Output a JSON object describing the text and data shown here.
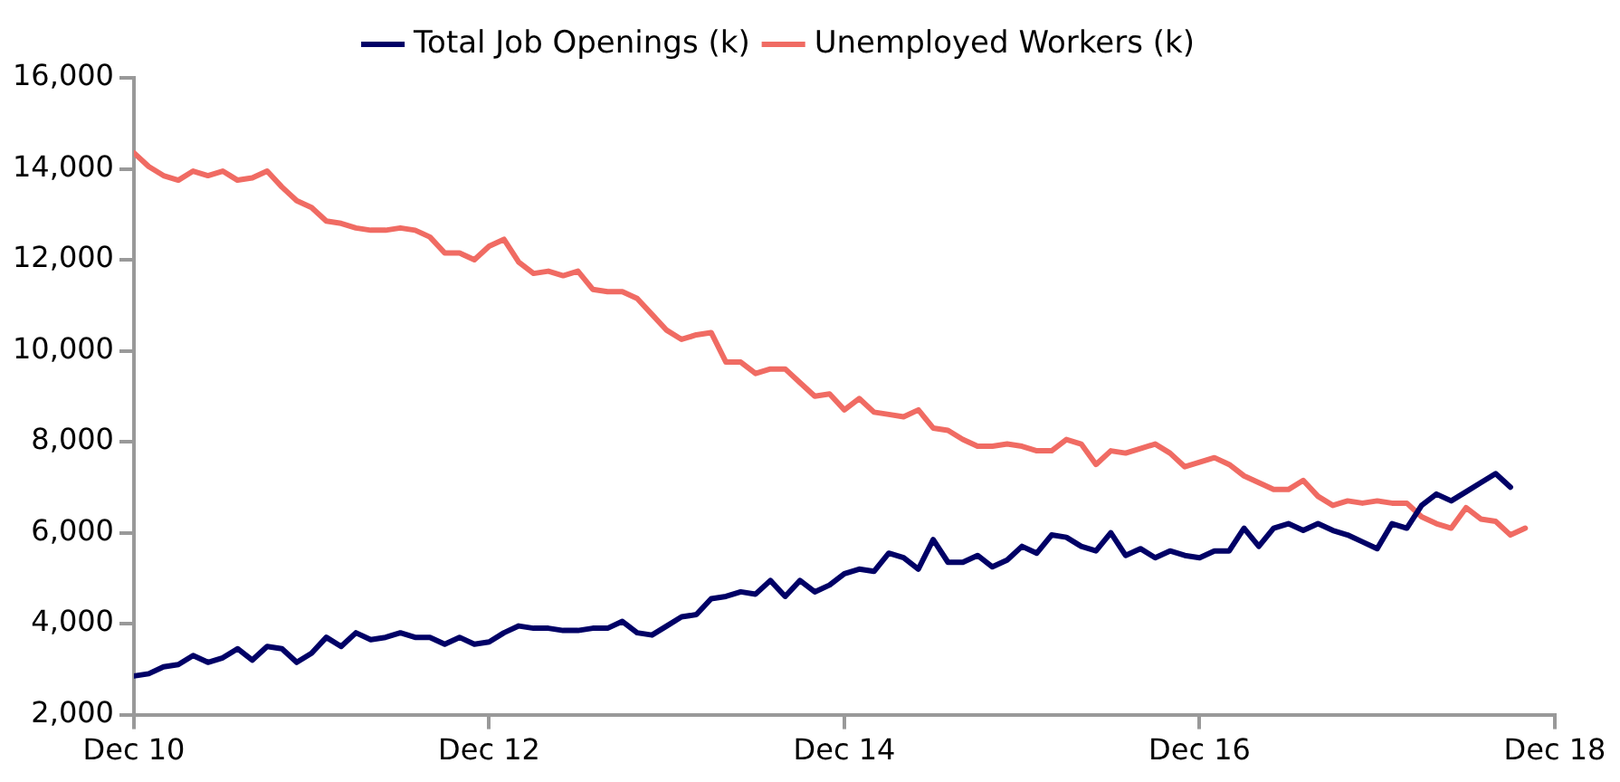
{
  "chart_data": {
    "type": "line",
    "legend": "top",
    "grid": false,
    "marker": "none",
    "line_style": "solid",
    "xlim": [
      "2010-12",
      "2018-12"
    ],
    "xticks": [
      {
        "value": "2010-12",
        "label": "Dec 10"
      },
      {
        "value": "2012-12",
        "label": "Dec 12"
      },
      {
        "value": "2014-12",
        "label": "Dec 14"
      },
      {
        "value": "2016-12",
        "label": "Dec 16"
      },
      {
        "value": "2018-12",
        "label": "Dec 18"
      }
    ],
    "ylim": [
      2000,
      16000
    ],
    "yticks": [
      {
        "value": 2000,
        "label": "2,000"
      },
      {
        "value": 4000,
        "label": "4,000"
      },
      {
        "value": 6000,
        "label": "6,000"
      },
      {
        "value": 8000,
        "label": "8,000"
      },
      {
        "value": 10000,
        "label": "10,000"
      },
      {
        "value": 12000,
        "label": "12,000"
      },
      {
        "value": 14000,
        "label": "14,000"
      },
      {
        "value": 16000,
        "label": "16,000"
      }
    ],
    "series": [
      {
        "name": "Total Job Openings (k)",
        "color": "#000066",
        "x": [
          "2010-12",
          "2011-01",
          "2011-02",
          "2011-03",
          "2011-04",
          "2011-05",
          "2011-06",
          "2011-07",
          "2011-08",
          "2011-09",
          "2011-10",
          "2011-11",
          "2011-12",
          "2012-01",
          "2012-02",
          "2012-03",
          "2012-04",
          "2012-05",
          "2012-06",
          "2012-07",
          "2012-08",
          "2012-09",
          "2012-10",
          "2012-11",
          "2012-12",
          "2013-01",
          "2013-02",
          "2013-03",
          "2013-04",
          "2013-05",
          "2013-06",
          "2013-07",
          "2013-08",
          "2013-09",
          "2013-10",
          "2013-11",
          "2013-12",
          "2014-01",
          "2014-02",
          "2014-03",
          "2014-04",
          "2014-05",
          "2014-06",
          "2014-07",
          "2014-08",
          "2014-09",
          "2014-10",
          "2014-11",
          "2014-12",
          "2015-01",
          "2015-02",
          "2015-03",
          "2015-04",
          "2015-05",
          "2015-06",
          "2015-07",
          "2015-08",
          "2015-09",
          "2015-10",
          "2015-11",
          "2015-12",
          "2016-01",
          "2016-02",
          "2016-03",
          "2016-04",
          "2016-05",
          "2016-06",
          "2016-07",
          "2016-08",
          "2016-09",
          "2016-10",
          "2016-11",
          "2016-12",
          "2017-01",
          "2017-02",
          "2017-03",
          "2017-04",
          "2017-05",
          "2017-06",
          "2017-07",
          "2017-08",
          "2017-09",
          "2017-10",
          "2017-11",
          "2017-12",
          "2018-01",
          "2018-02",
          "2018-03",
          "2018-04",
          "2018-05",
          "2018-06",
          "2018-07",
          "2018-08",
          "2018-09"
        ],
        "values": [
          2850,
          2900,
          3050,
          3100,
          3300,
          3150,
          3250,
          3450,
          3200,
          3500,
          3450,
          3150,
          3350,
          3700,
          3500,
          3800,
          3650,
          3700,
          3800,
          3700,
          3700,
          3550,
          3700,
          3550,
          3600,
          3800,
          3950,
          3900,
          3900,
          3850,
          3850,
          3900,
          3900,
          4050,
          3800,
          3750,
          3950,
          4150,
          4200,
          4550,
          4600,
          4700,
          4650,
          4950,
          4600,
          4950,
          4700,
          4850,
          5100,
          5200,
          5150,
          5550,
          5450,
          5200,
          5850,
          5350,
          5350,
          5500,
          5250,
          5400,
          5700,
          5550,
          5950,
          5900,
          5700,
          5600,
          6000,
          5500,
          5650,
          5450,
          5600,
          5500,
          5450,
          5600,
          5600,
          6100,
          5700,
          6100,
          6200,
          6050,
          6200,
          6050,
          5950,
          5800,
          5650,
          6200,
          6100,
          6600,
          6850,
          6700,
          6900,
          7100,
          7300,
          7000
        ]
      },
      {
        "name": "Unemployed Workers (k)",
        "color": "#f06b63",
        "x": [
          "2010-12",
          "2011-01",
          "2011-02",
          "2011-03",
          "2011-04",
          "2011-05",
          "2011-06",
          "2011-07",
          "2011-08",
          "2011-09",
          "2011-10",
          "2011-11",
          "2011-12",
          "2012-01",
          "2012-02",
          "2012-03",
          "2012-04",
          "2012-05",
          "2012-06",
          "2012-07",
          "2012-08",
          "2012-09",
          "2012-10",
          "2012-11",
          "2012-12",
          "2013-01",
          "2013-02",
          "2013-03",
          "2013-04",
          "2013-05",
          "2013-06",
          "2013-07",
          "2013-08",
          "2013-09",
          "2013-10",
          "2013-11",
          "2013-12",
          "2014-01",
          "2014-02",
          "2014-03",
          "2014-04",
          "2014-05",
          "2014-06",
          "2014-07",
          "2014-08",
          "2014-09",
          "2014-10",
          "2014-11",
          "2014-12",
          "2015-01",
          "2015-02",
          "2015-03",
          "2015-04",
          "2015-05",
          "2015-06",
          "2015-07",
          "2015-08",
          "2015-09",
          "2015-10",
          "2015-11",
          "2015-12",
          "2016-01",
          "2016-02",
          "2016-03",
          "2016-04",
          "2016-05",
          "2016-06",
          "2016-07",
          "2016-08",
          "2016-09",
          "2016-10",
          "2016-11",
          "2016-12",
          "2017-01",
          "2017-02",
          "2017-03",
          "2017-04",
          "2017-05",
          "2017-06",
          "2017-07",
          "2017-08",
          "2017-09",
          "2017-10",
          "2017-11",
          "2017-12",
          "2018-01",
          "2018-02",
          "2018-03",
          "2018-04",
          "2018-05",
          "2018-06",
          "2018-07",
          "2018-08",
          "2018-09",
          "2018-10"
        ],
        "values": [
          14350,
          14050,
          13850,
          13750,
          13950,
          13850,
          13950,
          13750,
          13800,
          13950,
          13600,
          13300,
          13150,
          12850,
          12800,
          12700,
          12650,
          12650,
          12700,
          12650,
          12500,
          12150,
          12150,
          12000,
          12300,
          12450,
          11950,
          11700,
          11750,
          11650,
          11750,
          11350,
          11300,
          11300,
          11150,
          10800,
          10450,
          10250,
          10350,
          10400,
          9750,
          9750,
          9500,
          9600,
          9600,
          9300,
          9000,
          9050,
          8700,
          8950,
          8650,
          8600,
          8550,
          8700,
          8300,
          8250,
          8050,
          7900,
          7900,
          7950,
          7900,
          7800,
          7800,
          8050,
          7950,
          7500,
          7800,
          7750,
          7850,
          7950,
          7750,
          7450,
          7550,
          7650,
          7500,
          7250,
          7100,
          6950,
          6950,
          7150,
          6800,
          6600,
          6700,
          6650,
          6700,
          6650,
          6650,
          6350,
          6200,
          6100,
          6550,
          6300,
          6250,
          5950,
          6100
        ]
      }
    ]
  }
}
